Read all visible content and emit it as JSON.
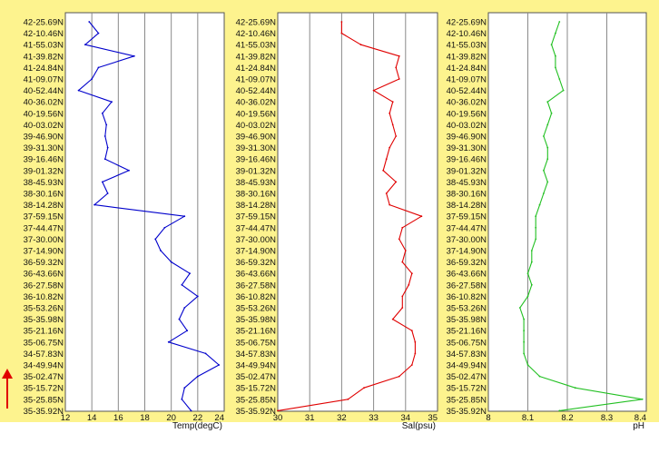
{
  "chart_data": [
    {
      "type": "line",
      "orientation": "vertical-profile",
      "xlabel": "Temp(degC)",
      "xlim": [
        12,
        24
      ],
      "xticks": [
        12,
        14,
        16,
        18,
        20,
        22,
        24
      ],
      "grid": true,
      "series_color": "#0000cc",
      "y_categories": [
        "42-25.69N",
        "42-10.46N",
        "41-55.03N",
        "41-39.82N",
        "41-24.84N",
        "41-09.07N",
        "40-52.44N",
        "40-36.02N",
        "40-19.56N",
        "40-03.02N",
        "39-46.90N",
        "39-31.30N",
        "39-16.46N",
        "39-01.32N",
        "38-45.93N",
        "38-30.16N",
        "38-14.28N",
        "37-59.15N",
        "37-44.47N",
        "37-30.00N",
        "37-14.90N",
        "36-59.32N",
        "36-43.66N",
        "36-27.58N",
        "36-10.82N",
        "35-53.26N",
        "35-35.98N",
        "35-21.16N",
        "35-06.75N",
        "34-57.83N",
        "34-49.94N",
        "35-02.47N",
        "35-15.72N",
        "35-25.85N",
        "35-35.92N"
      ],
      "values": [
        13.8,
        14.5,
        13.5,
        17.2,
        14.5,
        14.0,
        13.0,
        15.5,
        14.8,
        15.1,
        15.0,
        15.2,
        15.0,
        16.8,
        14.8,
        15.2,
        14.2,
        21.0,
        19.5,
        18.8,
        19.2,
        20.0,
        21.4,
        20.8,
        22.0,
        21.0,
        20.6,
        21.2,
        19.8,
        22.6,
        23.6,
        22.0,
        21.0,
        20.8,
        21.5
      ]
    },
    {
      "type": "line",
      "orientation": "vertical-profile",
      "xlabel": "Sal(psu)",
      "xlim": [
        30,
        35
      ],
      "xticks": [
        30,
        31,
        32,
        33,
        34,
        35
      ],
      "grid": true,
      "series_color": "#e00000",
      "y_categories": [
        "42-25.69N",
        "42-10.46N",
        "41-55.03N",
        "41-39.82N",
        "41-24.84N",
        "41-09.07N",
        "40-52.44N",
        "40-36.02N",
        "40-19.56N",
        "40-03.02N",
        "39-46.90N",
        "39-31.30N",
        "39-16.46N",
        "39-01.32N",
        "38-45.93N",
        "38-30.16N",
        "38-14.28N",
        "37-59.15N",
        "37-44.47N",
        "37-30.00N",
        "37-14.90N",
        "36-59.32N",
        "36-43.66N",
        "36-27.58N",
        "36-10.82N",
        "35-53.26N",
        "35-35.98N",
        "35-21.16N",
        "35-06.75N",
        "34-57.83N",
        "34-49.94N",
        "35-02.47N",
        "35-15.72N",
        "35-25.85N",
        "35-35.92N"
      ],
      "values": [
        32.0,
        32.0,
        32.6,
        33.8,
        33.7,
        33.8,
        33.0,
        33.6,
        33.5,
        33.6,
        33.7,
        33.5,
        33.4,
        33.3,
        33.7,
        33.4,
        33.5,
        34.5,
        33.9,
        33.8,
        34.0,
        33.9,
        34.2,
        34.1,
        33.9,
        33.9,
        33.6,
        34.2,
        34.3,
        34.3,
        34.2,
        33.8,
        32.7,
        32.2,
        30.0
      ]
    },
    {
      "type": "line",
      "orientation": "vertical-profile",
      "xlabel": "pH",
      "xlim": [
        8.0,
        8.4
      ],
      "xticks": [
        8.0,
        8.1,
        8.2,
        8.3,
        8.4
      ],
      "tick_labels": [
        "8",
        "8.1",
        "8.2",
        "8.3",
        "8.4"
      ],
      "grid": true,
      "series_color": "#22c022",
      "y_categories": [
        "42-25.69N",
        "42-10.46N",
        "41-55.03N",
        "41-39.82N",
        "41-24.84N",
        "41-09.07N",
        "40-52.44N",
        "40-36.02N",
        "40-19.56N",
        "40-03.02N",
        "39-46.90N",
        "39-31.30N",
        "39-16.46N",
        "39-01.32N",
        "38-45.93N",
        "38-30.16N",
        "38-14.28N",
        "37-59.15N",
        "37-44.47N",
        "37-30.00N",
        "37-14.90N",
        "36-59.32N",
        "36-43.66N",
        "36-27.58N",
        "36-10.82N",
        "35-53.26N",
        "35-35.98N",
        "35-21.16N",
        "35-06.75N",
        "34-57.83N",
        "34-49.94N",
        "35-02.47N",
        "35-15.72N",
        "35-25.85N",
        "35-35.92N"
      ],
      "values": [
        8.18,
        8.17,
        8.16,
        8.17,
        8.17,
        8.18,
        8.19,
        8.15,
        8.16,
        8.15,
        8.14,
        8.15,
        8.15,
        8.14,
        8.15,
        8.14,
        8.13,
        8.12,
        8.12,
        8.12,
        8.11,
        8.11,
        8.1,
        8.11,
        8.1,
        8.08,
        8.09,
        8.09,
        8.09,
        8.09,
        8.1,
        8.13,
        8.22,
        8.39,
        8.18
      ]
    }
  ],
  "indicator": {
    "arrow_color": "#e00000"
  }
}
